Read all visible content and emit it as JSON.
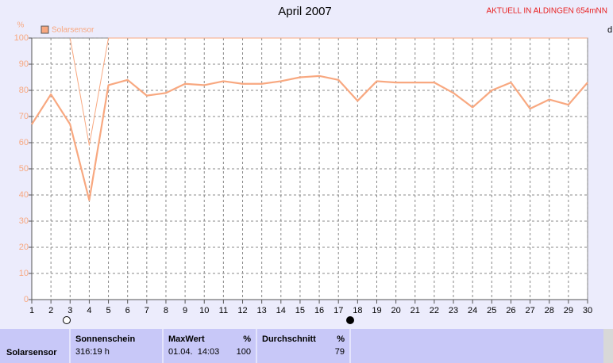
{
  "chart_data": {
    "type": "line",
    "title": "April 2007",
    "header_note": "AKTUELL IN ALDINGEN 654mNN",
    "y_unit": "%",
    "right_axis_label": "d",
    "x": [
      1,
      2,
      3,
      4,
      5,
      6,
      7,
      8,
      9,
      10,
      11,
      12,
      13,
      14,
      15,
      16,
      17,
      18,
      19,
      20,
      21,
      22,
      23,
      24,
      25,
      26,
      27,
      28,
      29,
      30
    ],
    "xlim": [
      1,
      30
    ],
    "series": [
      {
        "name": "Solarsensor",
        "color": "#f8a880",
        "width": 2.2,
        "values": [
          67,
          78.5,
          67,
          38,
          82,
          84,
          78,
          79,
          82.5,
          82,
          83.5,
          82.5,
          82.5,
          83.5,
          85,
          85.5,
          84,
          76,
          83.5,
          83,
          83,
          83,
          79,
          73.5,
          80,
          83,
          73,
          76.5,
          74.5,
          83
        ]
      },
      {
        "color": "#f8a880",
        "width": 1,
        "values": [
          null,
          null,
          100,
          59,
          100,
          100,
          100,
          100,
          100,
          100,
          100,
          100,
          100,
          100,
          100,
          100,
          100,
          100,
          100,
          100,
          100,
          100,
          100,
          100,
          100,
          100,
          100,
          100,
          100,
          100
        ]
      }
    ],
    "ylim": [
      0,
      100
    ],
    "yticks": [
      0,
      10,
      20,
      30,
      40,
      50,
      60,
      70,
      80,
      90,
      100
    ],
    "grid": true
  },
  "table": {
    "row_label": "Solarsensor",
    "columns": [
      {
        "header": "Sonnenschein",
        "value": "316:19 h"
      },
      {
        "header": "MaxWert",
        "unit": "%",
        "date": "01.04.  14:03",
        "value": "100"
      },
      {
        "header": "Durchschnitt",
        "unit": "%",
        "value": "79"
      }
    ]
  }
}
